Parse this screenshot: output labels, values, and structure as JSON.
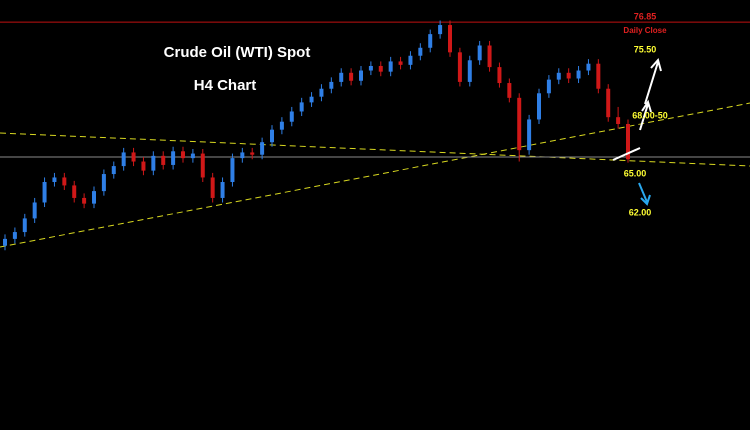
{
  "chart_data": {
    "type": "candlestick",
    "title": "Crude Oil (WTI) Spot",
    "subtitle": "H4 Chart",
    "ylim": [
      41,
      78.8
    ],
    "up_color": "#2f7fe6",
    "down_color": "#d01818",
    "open": [
      57.2,
      57.8,
      58.4,
      59.6,
      61.0,
      62.8,
      63.2,
      62.5,
      61.4,
      60.9,
      62.0,
      63.5,
      64.2,
      65.4,
      64.6,
      63.8,
      65.1,
      64.3,
      65.5,
      64.9,
      65.3,
      63.2,
      61.4,
      62.8,
      64.9,
      65.4,
      65.2,
      66.3,
      67.4,
      68.1,
      69.0,
      69.8,
      70.3,
      71.0,
      71.6,
      72.4,
      71.7,
      72.6,
      73.0,
      72.5,
      73.4,
      73.1,
      73.9,
      74.6,
      75.8,
      76.6,
      74.2,
      71.6,
      73.5,
      74.8,
      72.9,
      71.5,
      70.2,
      65.6,
      68.3,
      70.6,
      71.8,
      72.4,
      71.9,
      72.6,
      73.2,
      71.0,
      68.5,
      67.9
    ],
    "high": [
      58.2,
      58.8,
      60.0,
      61.4,
      63.2,
      63.6,
      63.6,
      62.9,
      61.8,
      62.4,
      63.9,
      64.6,
      65.8,
      65.8,
      65.0,
      65.5,
      65.5,
      65.9,
      65.9,
      65.7,
      65.7,
      63.6,
      63.2,
      65.3,
      65.8,
      65.8,
      66.7,
      67.8,
      68.5,
      69.4,
      70.2,
      70.7,
      71.4,
      72.0,
      72.8,
      72.8,
      73.0,
      73.4,
      73.4,
      73.8,
      73.8,
      74.3,
      75.0,
      76.2,
      77.0,
      77.0,
      74.6,
      73.9,
      75.2,
      75.2,
      73.3,
      71.9,
      70.6,
      68.7,
      71.0,
      72.2,
      72.8,
      72.8,
      73.0,
      73.6,
      73.6,
      71.4,
      69.4,
      68.3
    ],
    "low": [
      56.8,
      57.4,
      58.0,
      59.2,
      60.6,
      62.4,
      62.1,
      61.0,
      60.5,
      60.5,
      61.6,
      63.1,
      63.8,
      64.2,
      63.4,
      63.4,
      63.9,
      63.9,
      64.5,
      64.5,
      62.8,
      61.0,
      61.0,
      62.4,
      64.5,
      64.8,
      64.8,
      65.9,
      67.0,
      67.7,
      68.6,
      69.4,
      69.9,
      70.6,
      71.2,
      71.3,
      71.3,
      72.2,
      72.1,
      72.1,
      72.7,
      72.7,
      73.5,
      74.2,
      75.4,
      73.8,
      71.2,
      71.2,
      73.1,
      72.5,
      71.1,
      69.8,
      64.6,
      65.2,
      67.9,
      70.2,
      71.4,
      71.5,
      71.5,
      72.2,
      70.6,
      68.1,
      67.5,
      64.5
    ],
    "close": [
      57.8,
      58.4,
      59.6,
      61.0,
      62.8,
      63.2,
      62.5,
      61.4,
      60.9,
      62.0,
      63.5,
      64.2,
      65.4,
      64.6,
      63.8,
      65.1,
      64.3,
      65.5,
      64.9,
      65.3,
      63.2,
      61.4,
      62.8,
      64.9,
      65.4,
      65.2,
      66.3,
      67.4,
      68.1,
      69.0,
      69.8,
      70.3,
      71.0,
      71.6,
      72.4,
      71.7,
      72.6,
      73.0,
      72.5,
      73.4,
      73.1,
      73.9,
      74.6,
      75.8,
      76.6,
      74.2,
      71.6,
      73.5,
      74.8,
      72.9,
      71.5,
      70.2,
      65.6,
      68.3,
      70.6,
      71.8,
      72.4,
      71.9,
      72.6,
      73.2,
      71.0,
      68.5,
      67.9,
      64.8
    ],
    "levels": [
      {
        "value": 76.85,
        "color": "#c01010"
      },
      {
        "value": 65.0,
        "color": "#8a8a8a"
      }
    ],
    "annotations": [
      {
        "text": "76.85",
        "color": "#e02020"
      },
      {
        "text": "Daily Close",
        "color": "#e02020"
      },
      {
        "text": "75.50",
        "color": "#ffff33"
      },
      {
        "text": "68.00-50",
        "color": "#ffff33"
      },
      {
        "text": "65.00",
        "color": "#ffff33"
      },
      {
        "text": "62.00",
        "color": "#ffff33"
      }
    ]
  }
}
